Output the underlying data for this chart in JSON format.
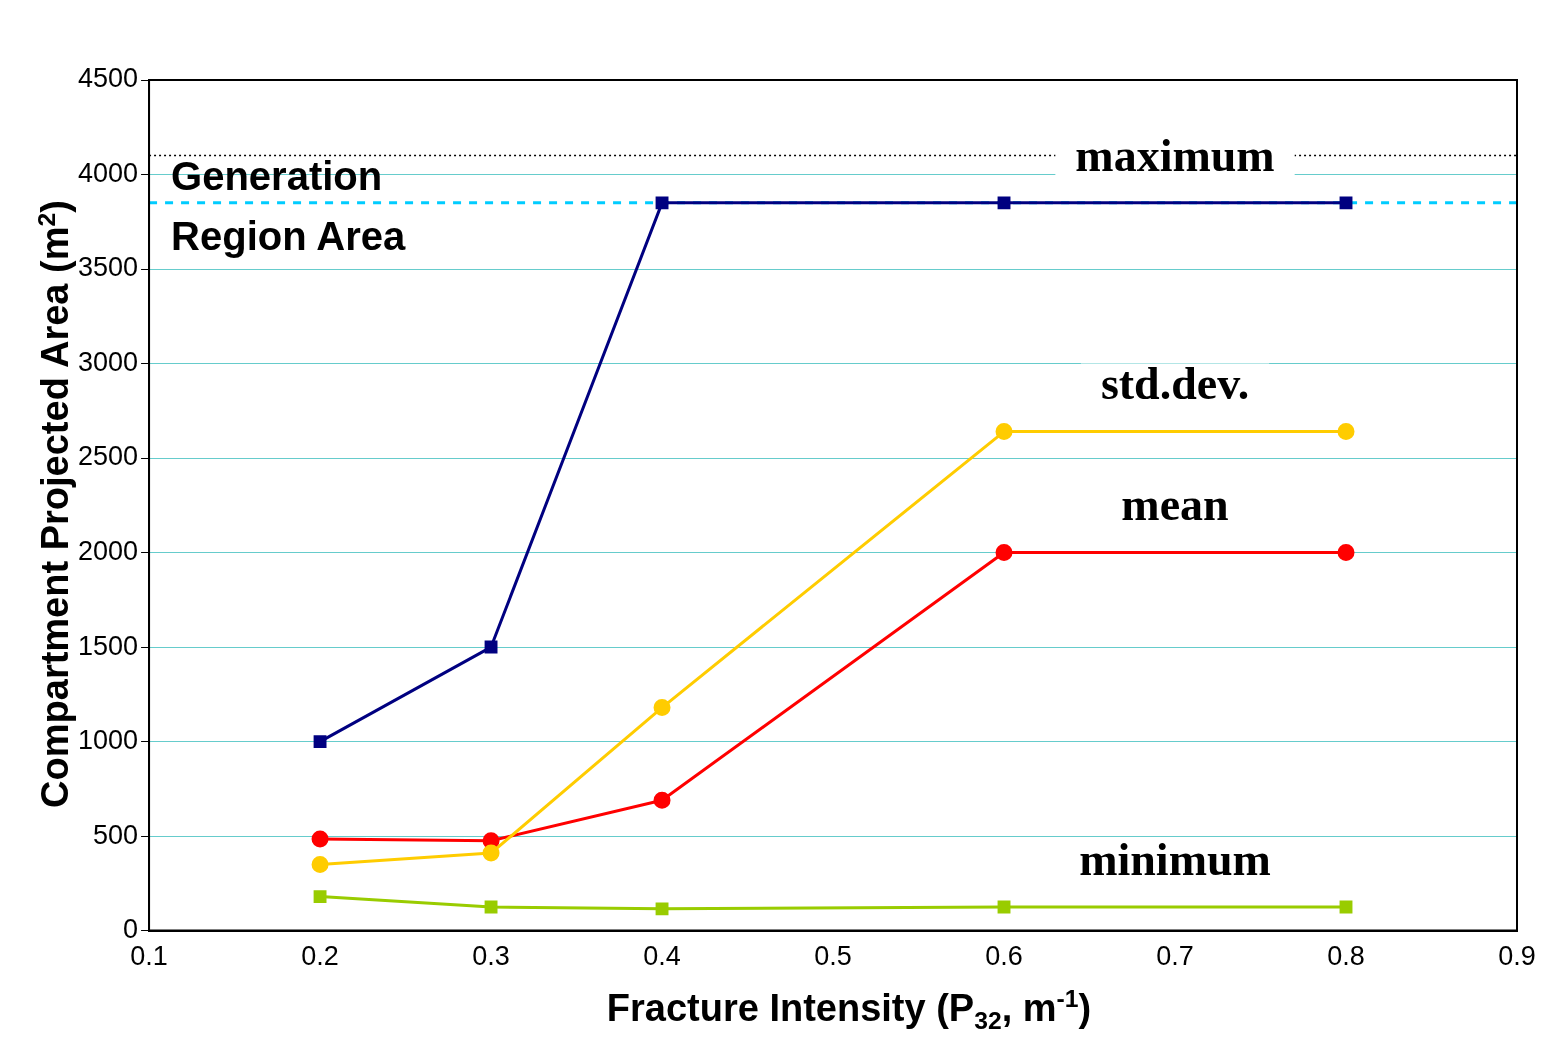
{
  "chart_data": {
    "type": "line",
    "xlabel": "Fracture Intensity (P$_{32}$, m$^{-1}$)",
    "ylabel": "Compartment  Projected Area (m$^{2}$)",
    "xlim": [
      0.1,
      0.9
    ],
    "xticks": [
      0.1,
      0.2,
      0.3,
      0.4,
      0.5,
      0.6,
      0.7,
      0.8,
      0.9
    ],
    "ylim": [
      0,
      4500
    ],
    "yticks": [
      0,
      500,
      1000,
      1500,
      2000,
      2500,
      3000,
      3500,
      4000,
      4500
    ],
    "grid": "y",
    "legend": false,
    "x": [
      0.2,
      0.3,
      0.4,
      0.6,
      0.8
    ],
    "series": [
      {
        "name": "maximum",
        "color": "#000080",
        "marker": "square",
        "values": [
          1000,
          1500,
          3850,
          3850,
          3850
        ]
      },
      {
        "name": "std.dev.",
        "color": "#ffcc00",
        "marker": "circle",
        "values": [
          350,
          410,
          1180,
          2640,
          2640
        ]
      },
      {
        "name": "mean",
        "color": "#ff0000",
        "marker": "circle",
        "values": [
          485,
          475,
          690,
          2000,
          2000
        ]
      },
      {
        "name": "minimum",
        "color": "#99cc00",
        "marker": "square",
        "values": [
          180,
          125,
          115,
          125,
          125
        ]
      }
    ],
    "ref_lines": [
      {
        "axis": "y",
        "value": 4100,
        "color": "#000000",
        "line_style": "dotted"
      },
      {
        "axis": "y",
        "value": 3850,
        "label": "Generation Region Area",
        "color": "#00ccff",
        "line_style": "dashed"
      }
    ]
  }
}
